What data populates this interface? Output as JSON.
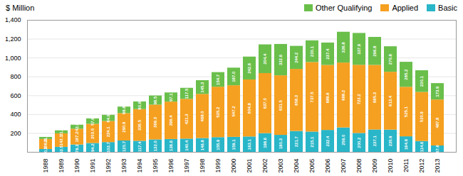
{
  "chart_data": {
    "type": "bar",
    "stacked": true,
    "ylabel": "$ Million",
    "categories": [
      "1988",
      "1989",
      "1990",
      "1991",
      "1992",
      "1993",
      "1994",
      "1995",
      "1996",
      "1997",
      "1998",
      "1999",
      "2000",
      "2001",
      "2002",
      "2003",
      "2004",
      "2005",
      "2006",
      "2007",
      "2008",
      "2009",
      "2010",
      "2011",
      "2012",
      "2013"
    ],
    "series": [
      {
        "name": "Basic",
        "color": "#29b6c8",
        "values": [
          30.3,
          53.5,
          78.3,
          94.2,
          103.7,
          120.7,
          117.4,
          132.0,
          136.6,
          140.4,
          146.8,
          155.9,
          159.1,
          163.1,
          198.6,
          180.3,
          221.7,
          215.1,
          232.4,
          259.0,
          200.2,
          237.1,
          235.9,
          164.9,
          114.6,
          67.6
        ],
        "value_labels": [
          "30.3",
          "53.5",
          "78.3",
          "94.2",
          "103.7",
          "120.7",
          "117.4",
          "132.0",
          "136.6",
          "140.4",
          "146.8",
          "155.9",
          "159.1",
          "163.1",
          "198.6",
          "180.3",
          "221.7",
          "215.1",
          "232.4",
          "259.0",
          "200.2",
          "237.1",
          "235.9",
          "164.9",
          "114.6",
          "67.6"
        ]
      },
      {
        "name": "Applied",
        "color": "#f5a020",
        "values": [
          106.6,
          143.1,
          167.2,
          203.5,
          224.1,
          290.9,
          336.5,
          369.3,
          396.4,
          421.3,
          468.0,
          535.2,
          547.2,
          604.8,
          637.0,
          631.5,
          658.3,
          737.5,
          689.6,
          688.2,
          723.2,
          685.3,
          613.4,
          525.1,
          520.9,
          487.8
        ],
        "value_labels": [
          "106.6",
          "143.1",
          "167.2",
          "203.5",
          "224.1",
          "290.9",
          "336.5",
          "369.3",
          "396.4",
          "421.3",
          "468.0",
          "535.2",
          "547.2",
          "604.8",
          "637.0",
          "631.5",
          "658.3",
          "737.5",
          "689.6",
          "688.2",
          "723.2",
          "685.3",
          "613.4",
          "525.1",
          "520.9",
          "487.8"
        ]
      },
      {
        "name": "Other Qualifying",
        "color": "#6abf4b",
        "values": [
          21.7,
          31.8,
          42.8,
          57.6,
          64.9,
          68.8,
          80.8,
          96.5,
          97.1,
          117.5,
          145.3,
          154.7,
          187.0,
          242.6,
          304.4,
          332.6,
          244.2,
          230.1,
          237.4,
          326.8,
          337.9,
          296.8,
          270.8,
          265.2,
          230.1,
          173.9
        ],
        "value_labels": [
          "21.7",
          "31.8",
          "42.8",
          "57.6",
          "64.9",
          "68.8",
          "80.8",
          "96.5",
          "97.1",
          "117.5",
          "145.3",
          "154.7",
          "187.0",
          "242.6",
          "304.4",
          "332.6",
          "244.2",
          "230.1",
          "237.4",
          "326.8",
          "337.9",
          "296.8",
          "270.8",
          "265.2",
          "230.1",
          "173.9"
        ]
      }
    ],
    "ylim": [
      0,
      1400
    ],
    "yticks": [
      200,
      400,
      600,
      800,
      {
        "value": 1000,
        "label": "1,000"
      },
      {
        "value": 1200,
        "label": "1,200"
      },
      {
        "value": 1400,
        "label": "1,400"
      }
    ],
    "grid": true,
    "data_labels": true,
    "legend": "top-right"
  }
}
